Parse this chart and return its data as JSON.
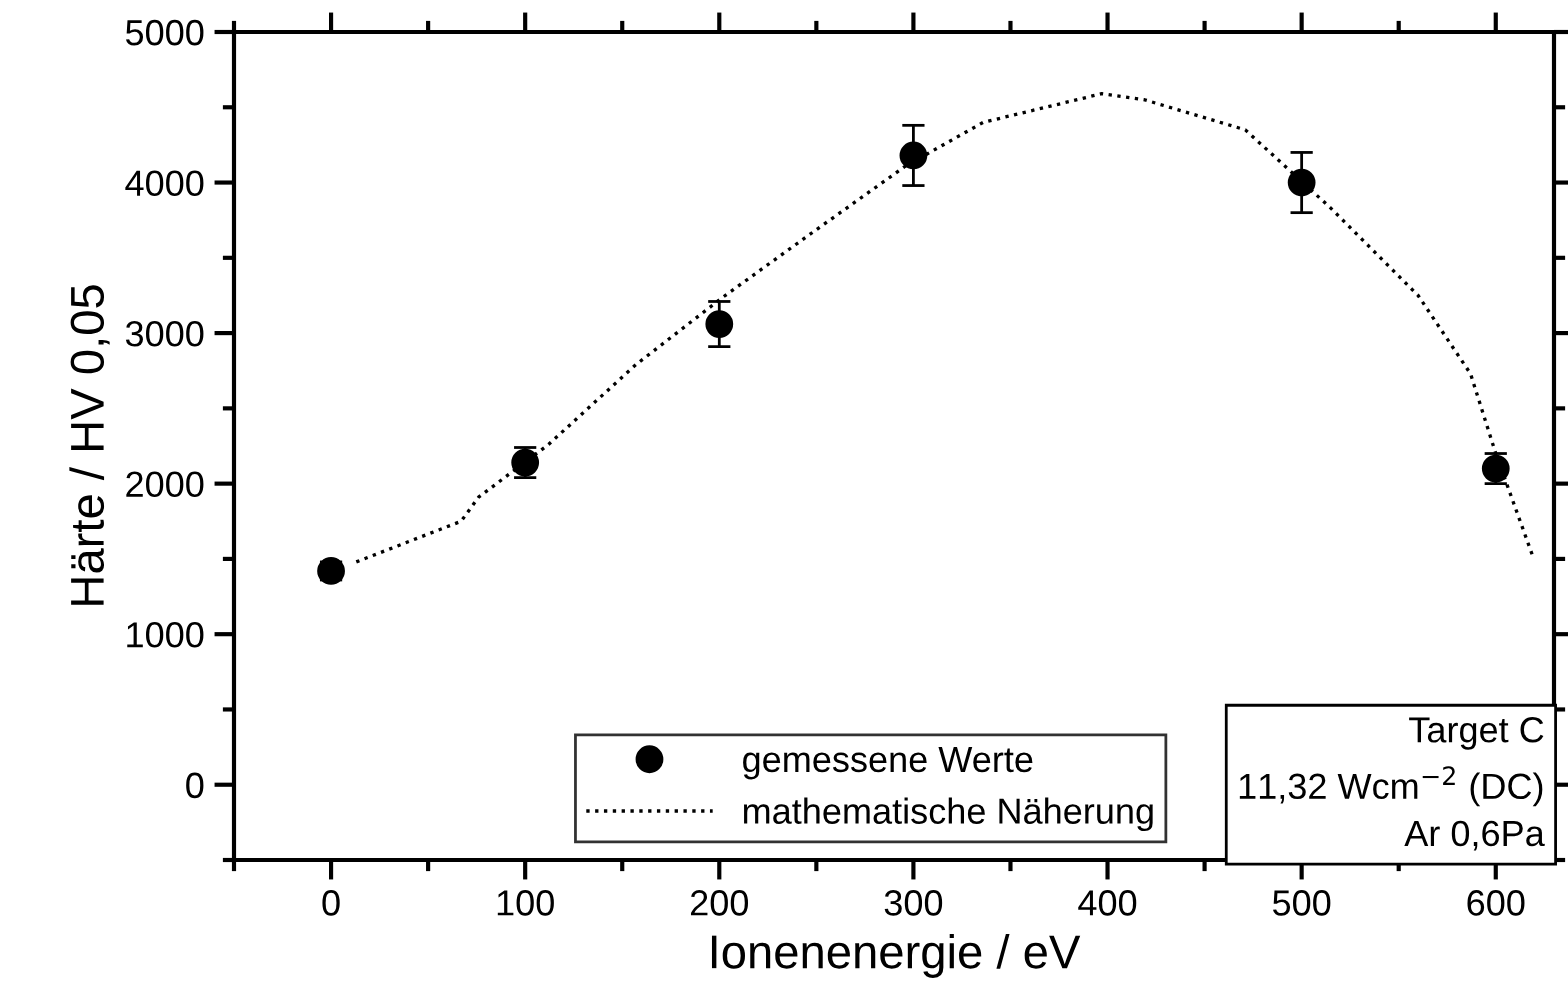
{
  "chart_data": {
    "type": "scatter",
    "xlabel": "Ionenenergie / eV",
    "ylabel": "Härte / HV 0,05",
    "xlim": [
      -50,
      630
    ],
    "xticks": [
      0,
      100,
      200,
      300,
      400,
      500,
      600
    ],
    "ylim": [
      -500,
      5000
    ],
    "yticks": [
      0,
      1000,
      2000,
      3000,
      4000,
      5000
    ],
    "grid": false,
    "legend": "bottom",
    "series": [
      {
        "name": "gemessene Werte",
        "marker": "circle",
        "color": "#000000",
        "x": [
          0,
          100,
          200,
          300,
          500,
          600
        ],
        "values": [
          1420,
          2140,
          3060,
          4180,
          4000,
          2100
        ],
        "errors": [
          60,
          100,
          150,
          200,
          200,
          100
        ]
      },
      {
        "name": "mathematische Näherung",
        "type": "line",
        "line_style": "dotted",
        "color": "#000000",
        "x": [
          13,
          67,
          76,
          112,
          157,
          202,
          246,
          296,
          336,
          397,
          419,
          471,
          515,
          560,
          587,
          600,
          619
        ],
        "values": [
          1480,
          1750,
          1910,
          2260,
          2790,
          3240,
          3650,
          4110,
          4400,
          4590,
          4550,
          4350,
          3830,
          3250,
          2730,
          2200,
          1520
        ]
      }
    ],
    "annotations": [
      "Target C",
      "11,32 Wcm$^{−2}$ (DC)",
      "Ar 0,6Pa"
    ]
  }
}
